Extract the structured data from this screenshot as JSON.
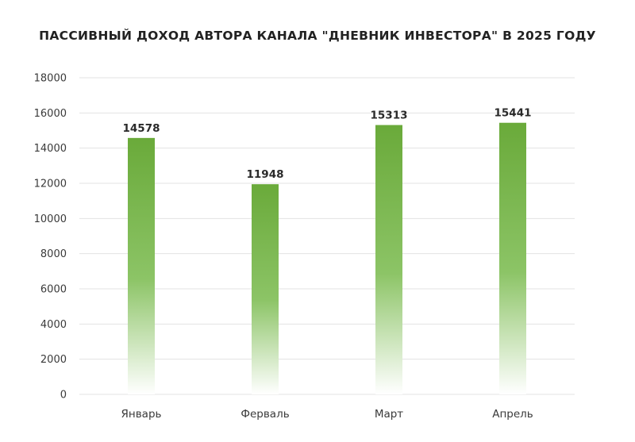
{
  "chart_data": {
    "type": "bar",
    "title": "ПАССИВНЫЙ ДОХОД АВТОРА КАНАЛА \"ДНЕВНИК ИНВЕСТОРА\" В 2025 ГОДУ",
    "categories": [
      "Январь",
      "Ферваль",
      "Март",
      "Апрель"
    ],
    "values": [
      14578,
      11948,
      15313,
      15441
    ],
    "ylim": [
      0,
      18000
    ],
    "yticks": [
      0,
      2000,
      4000,
      6000,
      8000,
      10000,
      12000,
      14000,
      16000,
      18000
    ],
    "xlabel": "",
    "ylabel": "",
    "grid": true,
    "legend": "none",
    "colors": {
      "bar_top": "#6aaa3a",
      "bar_bottom": "#ffffff",
      "grid": "#e3e3e3",
      "text": "#3a3a3a"
    }
  }
}
